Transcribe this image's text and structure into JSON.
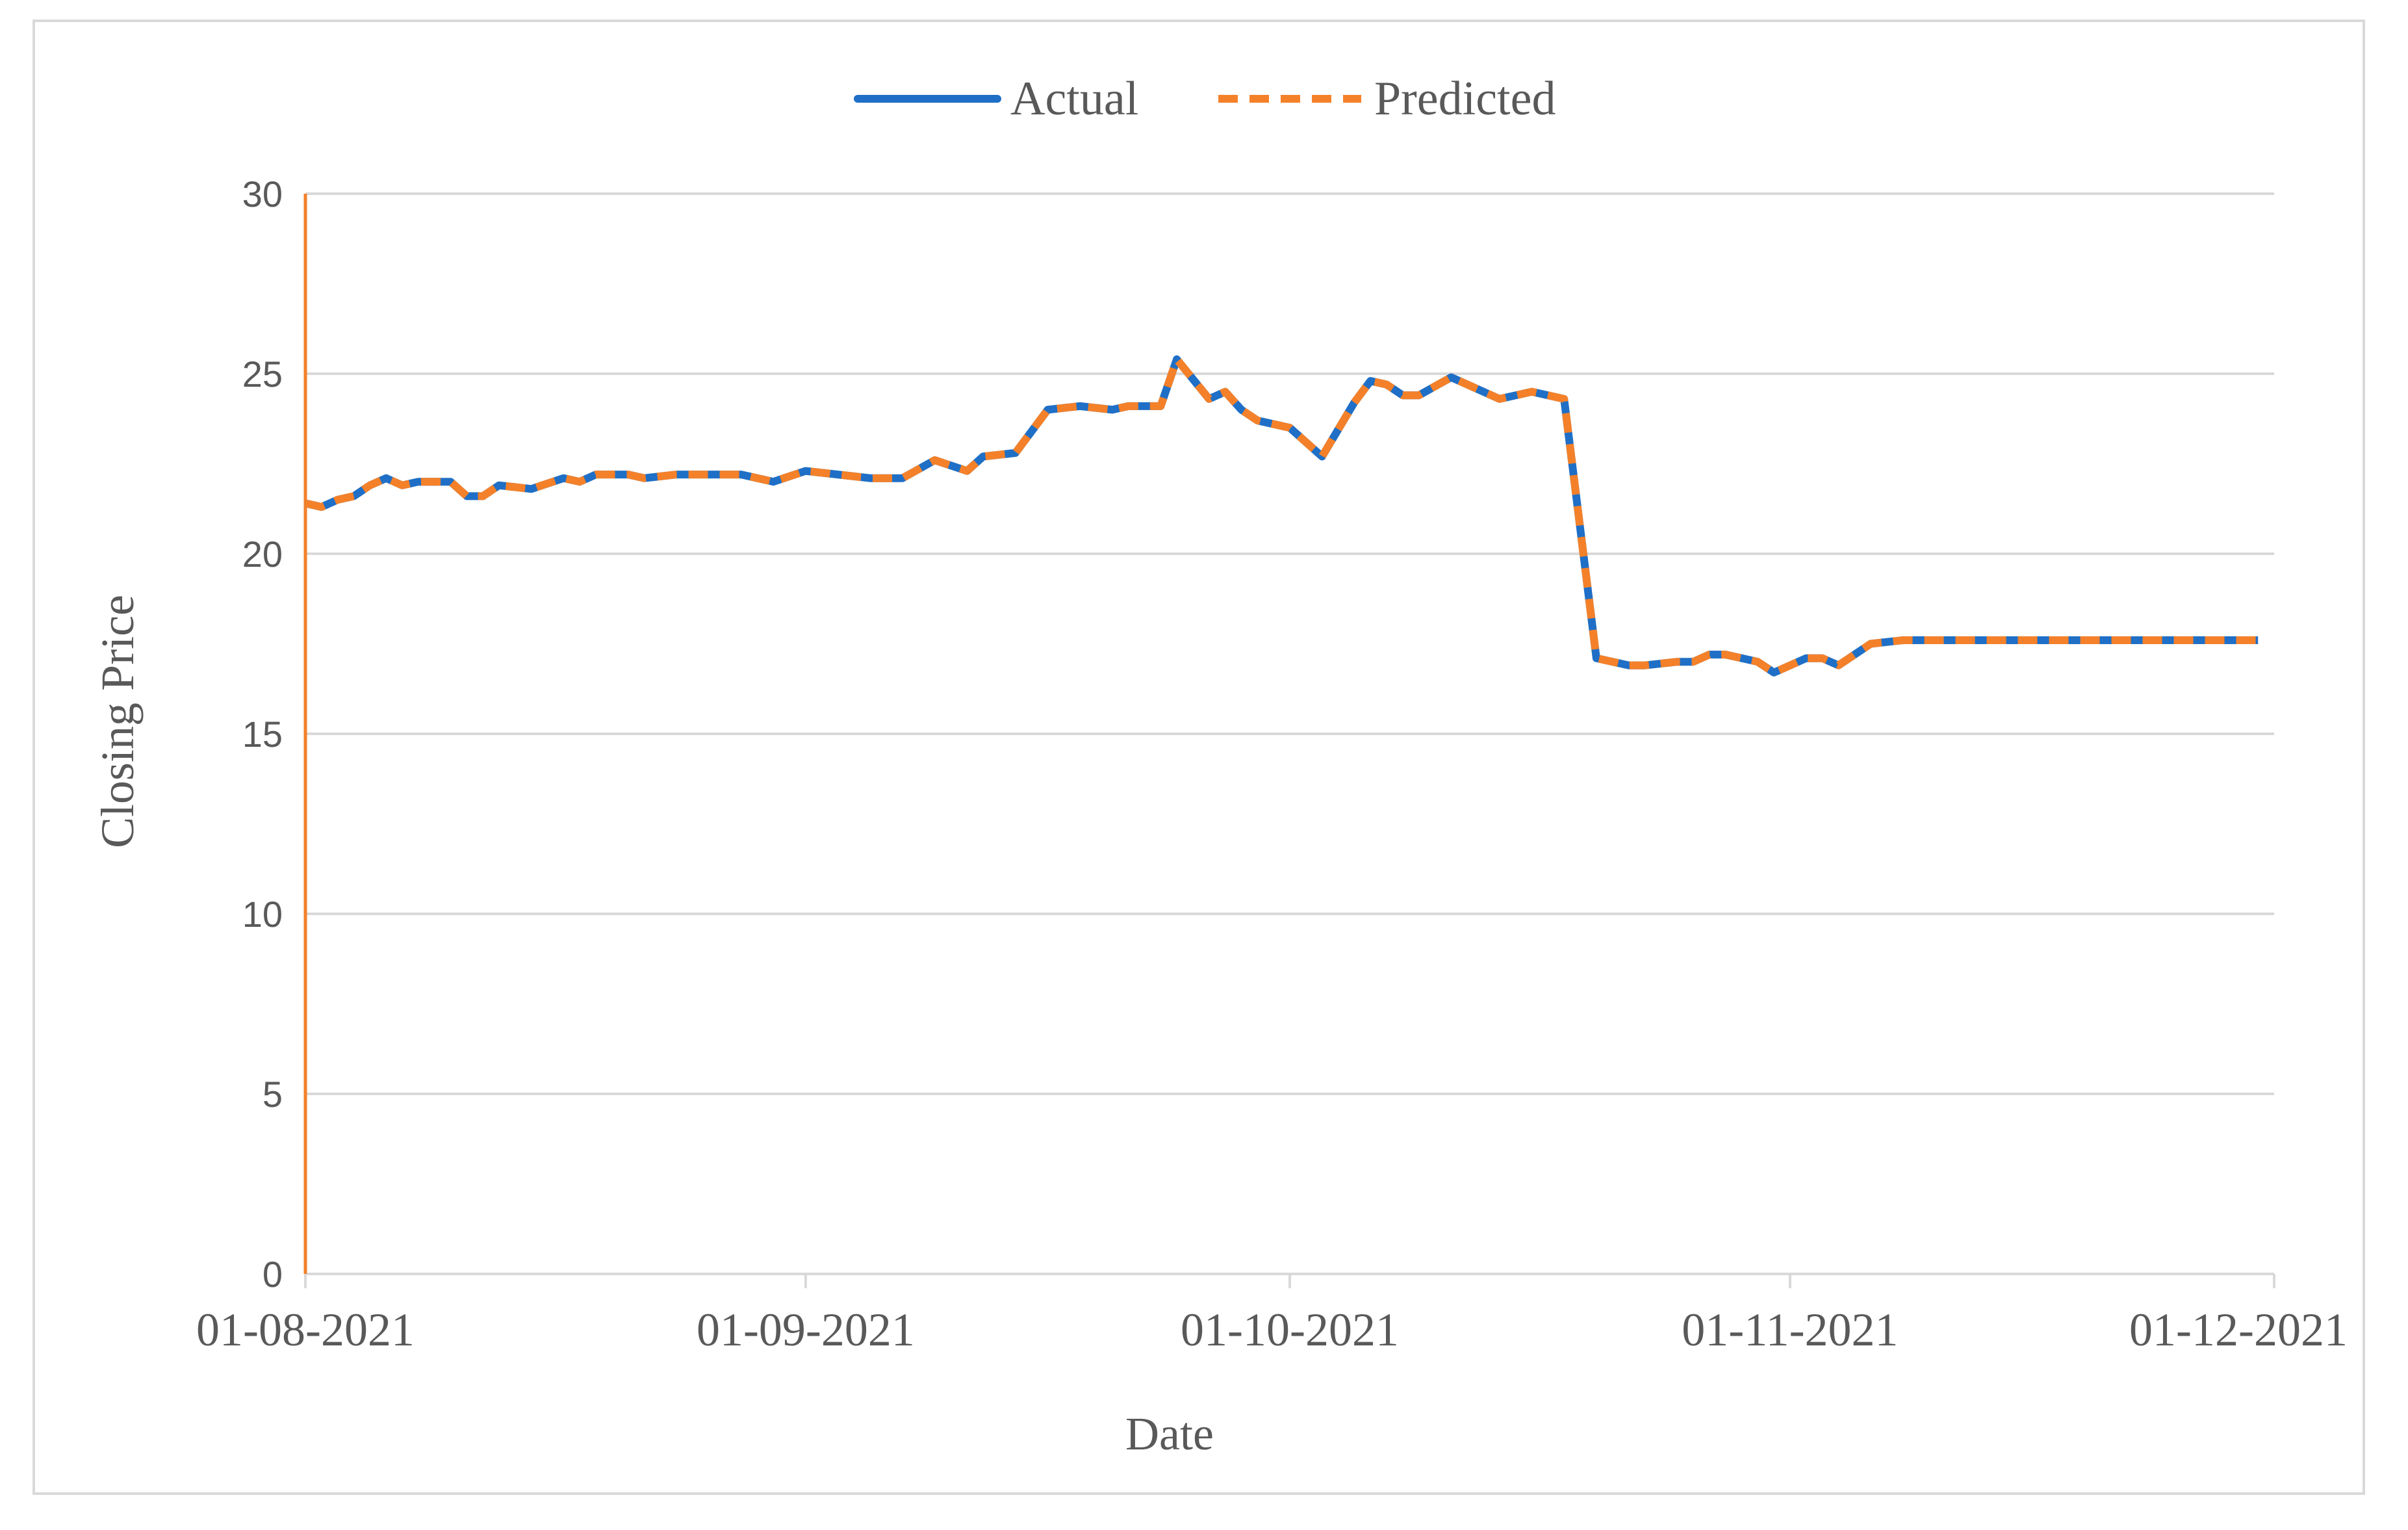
{
  "chart_data": {
    "type": "line",
    "title": "",
    "xlabel": "Date",
    "ylabel": "Closing Price",
    "ylim": [
      0,
      30
    ],
    "yticks": [
      "0",
      "5",
      "10",
      "15",
      "20",
      "25",
      "30"
    ],
    "xticks": [
      "01-08-2021",
      "01-09-2021",
      "01-10-2021",
      "01-11-2021",
      "01-12-2021"
    ],
    "grid": true,
    "legend_position": "top",
    "colors": {
      "actual": "#1f6fc6",
      "predicted": "#f4812a",
      "grid": "#d9d9d9",
      "axis": "#f4812a"
    },
    "series": [
      {
        "name": "Actual",
        "style": "solid",
        "x": [
          "2021-08-01",
          "2021-08-02",
          "2021-08-03",
          "2021-08-04",
          "2021-08-05",
          "2021-08-06",
          "2021-08-07",
          "2021-08-08",
          "2021-08-10",
          "2021-08-11",
          "2021-08-12",
          "2021-08-13",
          "2021-08-15",
          "2021-08-17",
          "2021-08-18",
          "2021-08-19",
          "2021-08-20",
          "2021-08-21",
          "2021-08-22",
          "2021-08-24",
          "2021-08-26",
          "2021-08-28",
          "2021-08-30",
          "2021-09-01",
          "2021-09-03",
          "2021-09-05",
          "2021-09-07",
          "2021-09-09",
          "2021-09-11",
          "2021-09-12",
          "2021-09-14",
          "2021-09-16",
          "2021-09-18",
          "2021-09-20",
          "2021-09-21",
          "2021-09-23",
          "2021-09-24",
          "2021-09-26",
          "2021-09-27",
          "2021-09-28",
          "2021-09-29",
          "2021-10-01",
          "2021-10-03",
          "2021-10-05",
          "2021-10-06",
          "2021-10-07",
          "2021-10-08",
          "2021-10-09",
          "2021-10-11",
          "2021-10-14",
          "2021-10-16",
          "2021-10-18",
          "2021-10-20",
          "2021-10-21",
          "2021-10-22",
          "2021-10-23",
          "2021-10-25",
          "2021-10-26",
          "2021-10-27",
          "2021-10-28",
          "2021-10-30",
          "2021-10-31",
          "2021-11-02",
          "2021-11-03",
          "2021-11-04",
          "2021-11-06",
          "2021-11-08",
          "2021-11-10",
          "2021-11-13",
          "2021-11-15",
          "2021-11-17",
          "2021-11-19",
          "2021-11-21",
          "2021-11-23",
          "2021-11-24",
          "2021-11-25",
          "2021-11-27",
          "2021-11-28",
          "2021-11-30"
        ],
        "values": [
          21.4,
          21.3,
          21.5,
          21.6,
          21.9,
          22.1,
          21.9,
          22.0,
          22.0,
          21.6,
          21.6,
          21.9,
          21.8,
          22.1,
          22.0,
          22.2,
          22.2,
          22.2,
          22.1,
          22.2,
          22.2,
          22.2,
          22.0,
          22.3,
          22.2,
          22.1,
          22.1,
          22.6,
          22.3,
          22.7,
          22.8,
          24.0,
          24.1,
          24.0,
          24.1,
          24.1,
          25.4,
          24.3,
          24.5,
          24.0,
          23.7,
          23.5,
          22.7,
          24.2,
          24.8,
          24.7,
          24.4,
          24.4,
          24.9,
          24.3,
          24.5,
          24.3,
          17.1,
          17.0,
          16.9,
          16.9,
          17.0,
          17.0,
          17.2,
          17.2,
          17.0,
          16.7,
          17.1,
          17.1,
          16.9,
          17.5,
          17.6,
          17.6,
          17.6,
          17.6,
          17.6,
          17.6,
          17.6,
          17.6,
          17.6,
          17.6,
          17.6,
          17.6,
          17.6
        ],
        "note": ""
      },
      {
        "name": "Predicted",
        "style": "dashed",
        "x": [],
        "values": []
      }
    ]
  },
  "legend": {
    "actual_label": "Actual",
    "predicted_label": "Predicted"
  }
}
